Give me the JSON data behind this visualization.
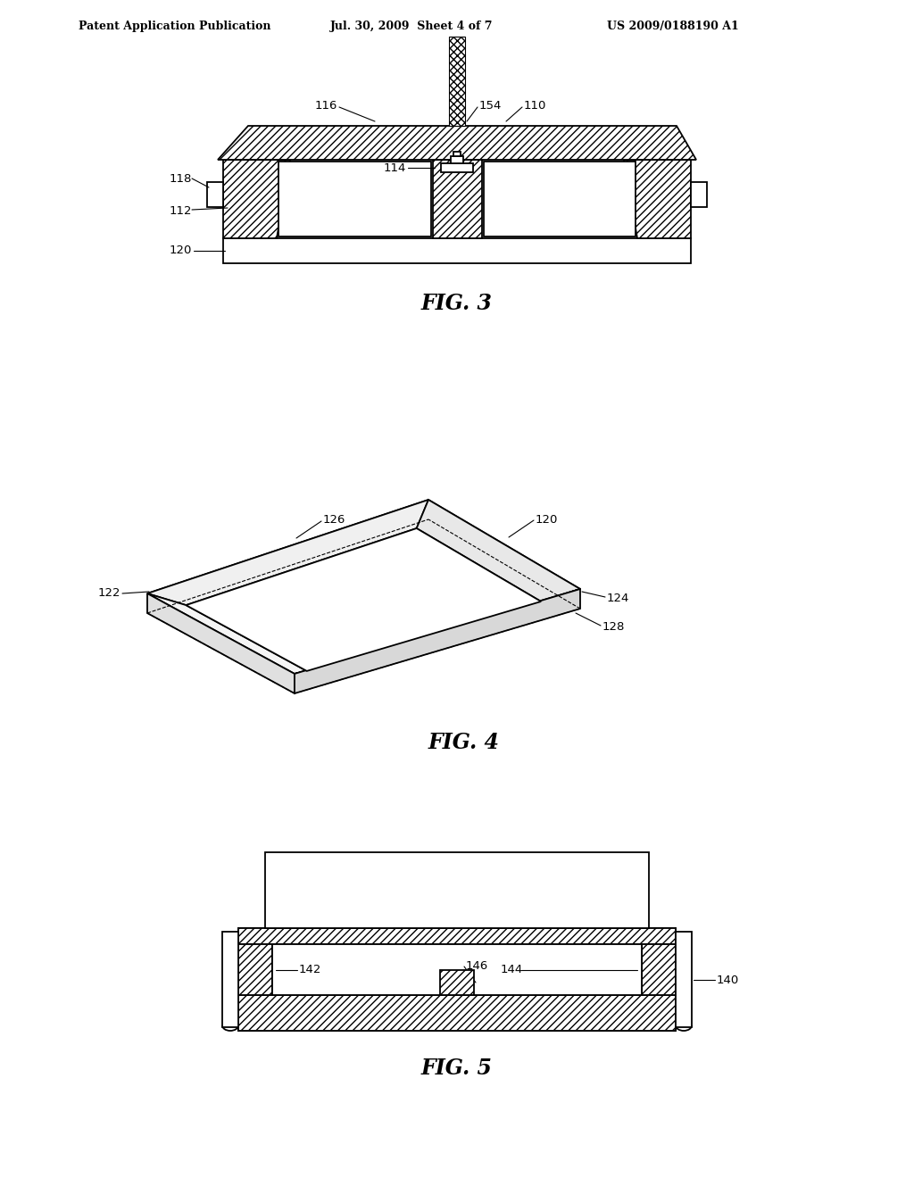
{
  "bg_color": "#ffffff",
  "header_left": "Patent Application Publication",
  "header_mid": "Jul. 30, 2009  Sheet 4 of 7",
  "header_right": "US 2009/0188190 A1",
  "fig3_label": "FIG. 3",
  "fig4_label": "FIG. 4",
  "fig5_label": "FIG. 5",
  "line_color": "#000000"
}
